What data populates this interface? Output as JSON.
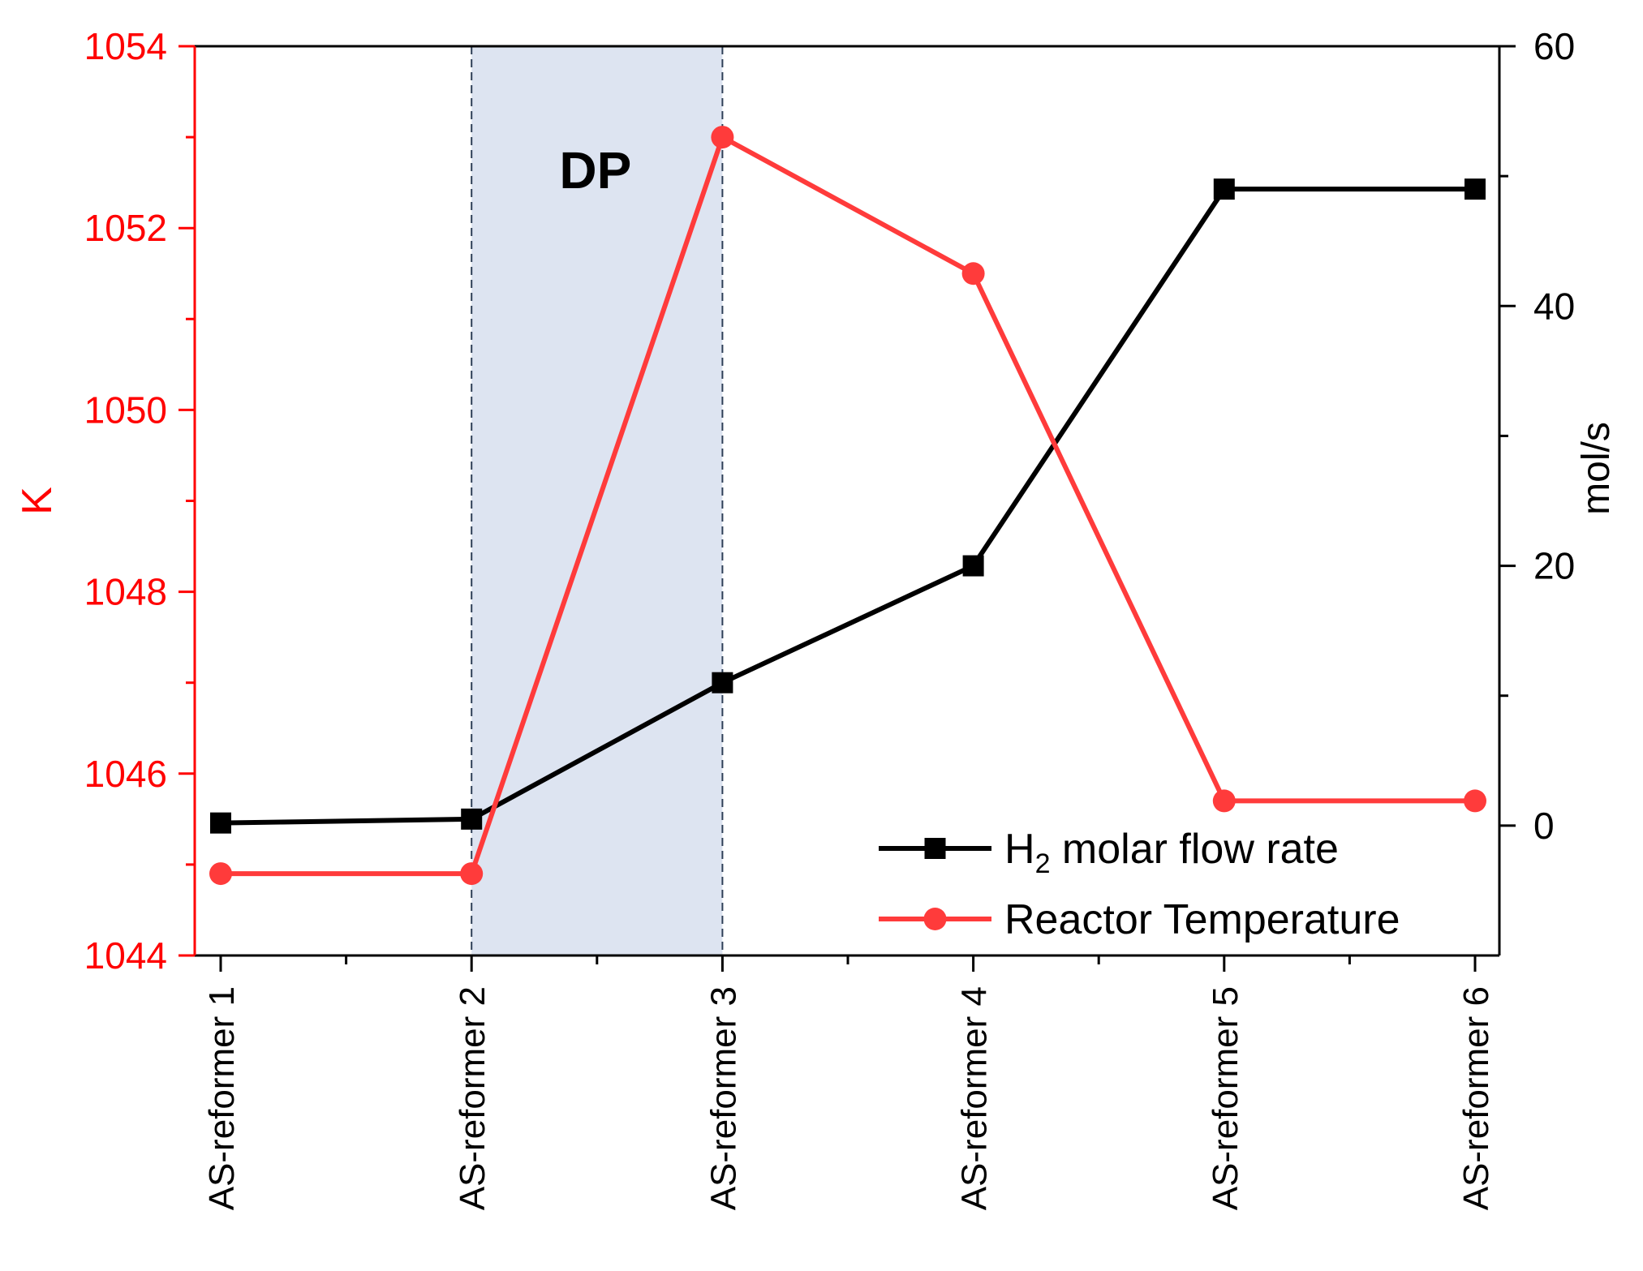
{
  "chart_data": {
    "type": "line",
    "categories": [
      "AS-reformer 1",
      "AS-reformer 2",
      "AS-reformer 3",
      "AS-reformer 4",
      "AS-reformer 5",
      "AS-reformer 6"
    ],
    "series": [
      {
        "name": "H2 molar flow rate",
        "legend_main": "H",
        "legend_sub": "2",
        "legend_rest": " molar flow rate",
        "axis": "right",
        "color": "#000000",
        "marker": "square",
        "values": [
          0.2,
          0.5,
          11.0,
          20.0,
          49.0,
          49.0
        ]
      },
      {
        "name": "Reactor Temperature",
        "legend_label": "Reactor Temperature",
        "axis": "left",
        "color": "#ff3b3b",
        "marker": "circle",
        "values": [
          1044.9,
          1044.9,
          1053.0,
          1051.5,
          1045.7,
          1045.7
        ]
      }
    ],
    "left_axis": {
      "label": "K",
      "color": "#ff0000",
      "range": [
        1044,
        1054
      ],
      "ticks": [
        "1044",
        "1046",
        "1048",
        "1050",
        "1052",
        "1054"
      ]
    },
    "right_axis": {
      "label": "mol/s",
      "color": "#000000",
      "range": [
        -10,
        60
      ],
      "ticks": [
        "0",
        "20",
        "40",
        "60"
      ]
    },
    "highlight": {
      "label": "DP",
      "from_category": "AS-reformer 2",
      "to_category": "AS-reformer 3",
      "fill": "#dde4f1"
    },
    "legend_position": "bottom-right",
    "grid": false
  }
}
